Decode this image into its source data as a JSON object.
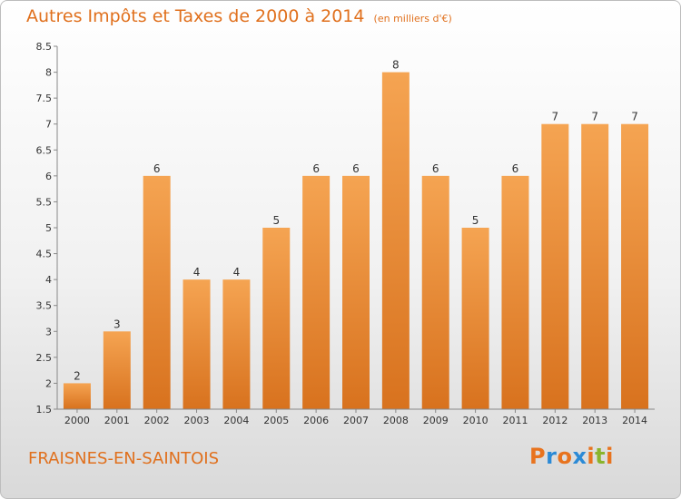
{
  "title": "Autres Impôts et Taxes de 2000 à 2014",
  "subtitle": "(en milliers d'€)",
  "location": "FRAISNES-EN-SAINTOIS",
  "logo": "Proxiti",
  "colors": {
    "title": "#e0701d",
    "bar_light": "#f5a452",
    "bar_dark": "#d8721e",
    "logo": [
      "#e8731e",
      "#2b8ad6",
      "#e8731e",
      "#2b8ad6",
      "#e8731e",
      "#8ab42c",
      "#e8731e"
    ]
  },
  "chart_data": {
    "type": "bar",
    "categories": [
      "2000",
      "2001",
      "2002",
      "2003",
      "2004",
      "2005",
      "2006",
      "2007",
      "2008",
      "2009",
      "2010",
      "2011",
      "2012",
      "2013",
      "2014"
    ],
    "values": [
      2,
      3,
      6,
      4,
      4,
      5,
      6,
      6,
      8,
      6,
      5,
      6,
      7,
      7,
      7
    ],
    "ylim": [
      1.5,
      8.5
    ],
    "yticks": [
      "1.5",
      "2",
      "2.5",
      "3",
      "3.5",
      "4",
      "4.5",
      "5",
      "5.5",
      "6",
      "6.5",
      "7",
      "7.5",
      "8",
      "8.5"
    ],
    "grid": false,
    "legend": "none"
  }
}
